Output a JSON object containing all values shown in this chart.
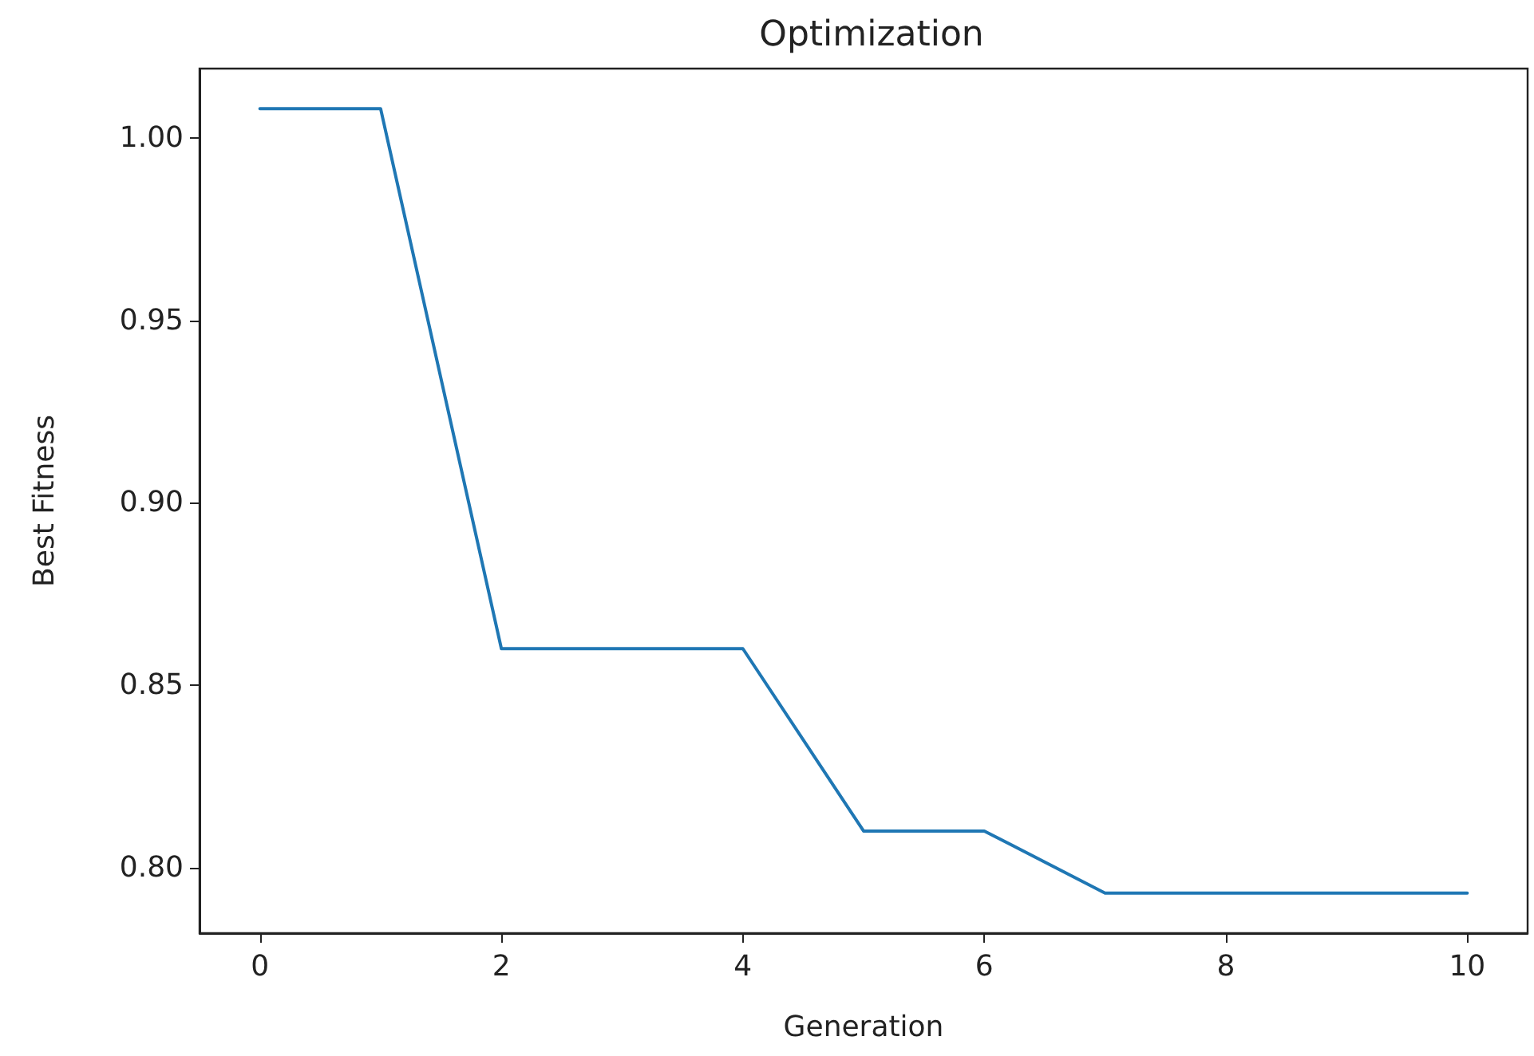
{
  "chart_data": {
    "type": "line",
    "title": "Optimization",
    "xlabel": "Generation",
    "ylabel": "Best Fitness",
    "x": [
      0,
      1,
      2,
      3,
      4,
      5,
      6,
      7,
      8,
      9,
      10
    ],
    "series": [
      {
        "color": "#1f77b4",
        "values": [
          1.008,
          1.008,
          0.86,
          0.86,
          0.86,
          0.81,
          0.81,
          0.793,
          0.793,
          0.793,
          0.793
        ]
      }
    ],
    "xlim": [
      -0.5,
      10.5
    ],
    "xticks": [
      0,
      2,
      4,
      6,
      8,
      10
    ],
    "ylim": [
      0.782,
      1.019
    ],
    "yticks": [
      {
        "value": 0.8,
        "label": "0.80"
      },
      {
        "value": 0.85,
        "label": "0.85"
      },
      {
        "value": 0.9,
        "label": "0.90"
      },
      {
        "value": 0.95,
        "label": "0.95"
      },
      {
        "value": 1.0,
        "label": "1.00"
      }
    ],
    "grid": false,
    "marker": "none",
    "line_style": "solid"
  }
}
